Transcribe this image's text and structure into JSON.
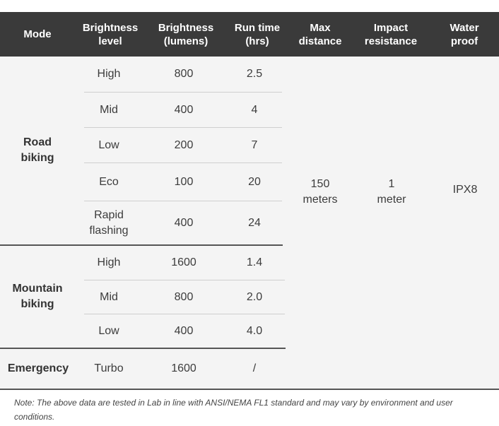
{
  "headers": {
    "mode": "Mode",
    "brightness_level": "Brightness\nlevel",
    "brightness_lumens": "Brightness\n(lumens)",
    "run_time": "Run time\n(hrs)",
    "max_distance": "Max\ndistance",
    "impact_resistance": "Impact\nresistance",
    "water_proof": "Water\nproof"
  },
  "groups": {
    "road": {
      "mode": "Road\nbiking",
      "rows": [
        {
          "level": "High",
          "lumens": "800",
          "runtime": "2.5"
        },
        {
          "level": "Mid",
          "lumens": "400",
          "runtime": "4"
        },
        {
          "level": "Low",
          "lumens": "200",
          "runtime": "7"
        },
        {
          "level": "Eco",
          "lumens": "100",
          "runtime": "20"
        },
        {
          "level": "Rapid\nflashing",
          "lumens": "400",
          "runtime": "24"
        }
      ]
    },
    "mountain": {
      "mode": "Mountain\nbiking",
      "rows": [
        {
          "level": "High",
          "lumens": "1600",
          "runtime": "1.4"
        },
        {
          "level": "Mid",
          "lumens": "800",
          "runtime": "2.0"
        },
        {
          "level": "Low",
          "lumens": "400",
          "runtime": "4.0"
        }
      ]
    },
    "emergency": {
      "mode": "Emergency",
      "rows": [
        {
          "level": "Turbo",
          "lumens": "1600",
          "runtime": "/"
        }
      ]
    }
  },
  "shared": {
    "max_distance": "150\nmeters",
    "impact_resistance": "1\nmeter",
    "water_proof": "IPX8"
  },
  "note": "Note: The above data are tested in Lab in line with ANSI/NEMA FL1 standard and may vary by environment and user conditions.",
  "colors": {
    "header_bg": "#3a3a3a",
    "body_bg": "#f4f4f4"
  }
}
